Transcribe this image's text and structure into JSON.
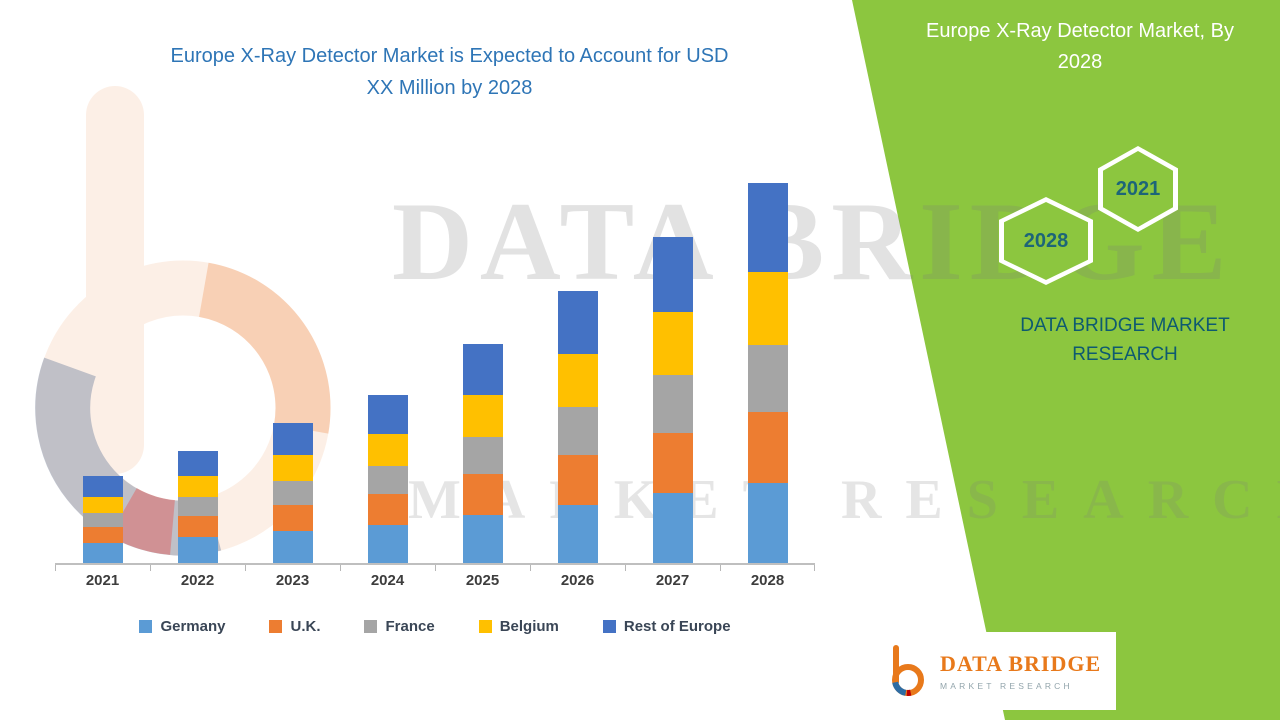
{
  "title": {
    "text": "Europe X-Ray Detector Market is Expected to Account for USD XX Million by 2028",
    "color": "#2E75B6"
  },
  "banner": {
    "color": "#8CC63F",
    "title": "Europe X-Ray Detector Market, By 2028",
    "hexagon_left_label": "2028",
    "hexagon_right_label": "2021",
    "brand_text": "DATA BRIDGE MARKET RESEARCH"
  },
  "watermark": {
    "line1": "DATA BRIDGE",
    "line2": "MARKET RESEARCH"
  },
  "footer_logo": {
    "brand": "DATA BRIDGE",
    "subtitle": "MARKET RESEARCH"
  },
  "chart_data": {
    "type": "bar",
    "stacked": true,
    "title": "Europe X-Ray Detector Market is Expected to Account for USD XX Million by 2028",
    "categories": [
      "2021",
      "2022",
      "2023",
      "2024",
      "2025",
      "2026",
      "2027",
      "2028"
    ],
    "series": [
      {
        "name": "Germany",
        "color": "#5B9BD5",
        "values": [
          20,
          26,
          32,
          38,
          48,
          58,
          70,
          80
        ]
      },
      {
        "name": "U.K.",
        "color": "#ED7D31",
        "values": [
          16,
          21,
          26,
          31,
          41,
          51,
          61,
          72
        ]
      },
      {
        "name": "France",
        "color": "#A5A5A5",
        "values": [
          14,
          19,
          24,
          29,
          38,
          48,
          58,
          67
        ]
      },
      {
        "name": "Belgium",
        "color": "#FFC000",
        "values": [
          16,
          21,
          27,
          32,
          42,
          53,
          63,
          74
        ]
      },
      {
        "name": "Rest of Europe",
        "color": "#4472C4",
        "values": [
          21,
          26,
          32,
          39,
          51,
          63,
          76,
          89
        ]
      }
    ],
    "xlabel": "",
    "ylabel": "",
    "ylim": [
      0,
      400
    ],
    "y_axis_labels_visible": false,
    "gridlines": false,
    "legend_position": "bottom"
  }
}
